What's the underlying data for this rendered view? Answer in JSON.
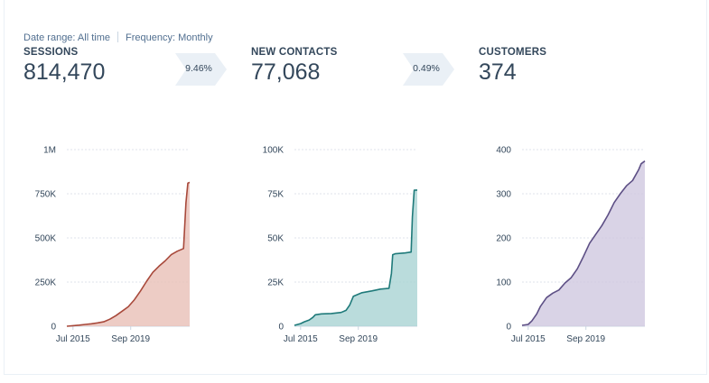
{
  "filters": {
    "date_range": "Date range: All time",
    "frequency": "Frequency: Monthly"
  },
  "kpis": [
    {
      "label": "SESSIONS",
      "value": "814,470"
    },
    {
      "label": "NEW CONTACTS",
      "value": "77,068"
    },
    {
      "label": "CUSTOMERS",
      "value": "374"
    }
  ],
  "conversion_rates": [
    "9.46%",
    "0.49%"
  ],
  "colors": {
    "sessions_line": "#a8493b",
    "sessions_fill": "#e8bfb6",
    "contacts_line": "#1f7a7a",
    "contacts_fill": "#a9d3d3",
    "customers_line": "#5d4f85",
    "customers_fill": "#cfc8e0",
    "arrow": "#eaf0f6"
  },
  "chart_data": [
    {
      "type": "area",
      "title": "",
      "xlabel": "",
      "ylabel": "",
      "ylim": [
        0,
        1000000
      ],
      "yticks": [
        0,
        250000,
        500000,
        750000,
        1000000
      ],
      "ytick_labels": [
        "0",
        "250K",
        "500K",
        "750K",
        "1M"
      ],
      "xtick_labels": [
        "Jul 2015",
        "Sep 2019"
      ],
      "xtick_pos": [
        0.05,
        0.52
      ],
      "grid": true,
      "series": [
        {
          "t": [
            0,
            0.05,
            0.1,
            0.15,
            0.2,
            0.25,
            0.3,
            0.35,
            0.4,
            0.45,
            0.5,
            0.55,
            0.6,
            0.65,
            0.7,
            0.75,
            0.8,
            0.85,
            0.9,
            0.95,
            0.97,
            0.985,
            1.0
          ],
          "values": [
            0,
            3000,
            6000,
            10000,
            14000,
            19000,
            25000,
            40000,
            60000,
            85000,
            110000,
            150000,
            200000,
            255000,
            305000,
            340000,
            370000,
            405000,
            425000,
            440000,
            700000,
            810000,
            814470
          ]
        }
      ]
    },
    {
      "type": "area",
      "title": "",
      "xlabel": "",
      "ylabel": "",
      "ylim": [
        0,
        100000
      ],
      "yticks": [
        0,
        25000,
        50000,
        75000,
        100000
      ],
      "ytick_labels": [
        "0",
        "25K",
        "50K",
        "75K",
        "100K"
      ],
      "xtick_labels": [
        "Jul 2015",
        "Sep 2019"
      ],
      "xtick_pos": [
        0.05,
        0.52
      ],
      "grid": true,
      "series": [
        {
          "t": [
            0,
            0.05,
            0.08,
            0.12,
            0.15,
            0.17,
            0.22,
            0.3,
            0.38,
            0.42,
            0.45,
            0.48,
            0.55,
            0.63,
            0.7,
            0.77,
            0.79,
            0.8,
            0.82,
            0.9,
            0.95,
            0.96,
            0.975,
            1.0
          ],
          "values": [
            500,
            1500,
            2500,
            3500,
            5000,
            6500,
            7000,
            7200,
            7800,
            9000,
            12000,
            17000,
            19000,
            20000,
            21000,
            21500,
            30000,
            40500,
            41000,
            41500,
            42000,
            62000,
            77000,
            77068
          ]
        }
      ]
    },
    {
      "type": "area",
      "title": "",
      "xlabel": "",
      "ylabel": "",
      "ylim": [
        0,
        400
      ],
      "yticks": [
        0,
        100,
        200,
        300,
        400
      ],
      "ytick_labels": [
        "0",
        "100",
        "200",
        "300",
        "400"
      ],
      "xtick_labels": [
        "Jul 2015",
        "Sep 2019"
      ],
      "xtick_pos": [
        0.05,
        0.52
      ],
      "grid": true,
      "series": [
        {
          "t": [
            0,
            0.05,
            0.08,
            0.12,
            0.15,
            0.2,
            0.25,
            0.3,
            0.35,
            0.4,
            0.45,
            0.5,
            0.55,
            0.6,
            0.65,
            0.7,
            0.75,
            0.8,
            0.85,
            0.9,
            0.95,
            0.97,
            1.0
          ],
          "values": [
            2,
            4,
            12,
            28,
            45,
            65,
            75,
            82,
            98,
            110,
            130,
            158,
            188,
            208,
            228,
            252,
            280,
            300,
            318,
            330,
            355,
            368,
            374
          ]
        }
      ]
    }
  ]
}
